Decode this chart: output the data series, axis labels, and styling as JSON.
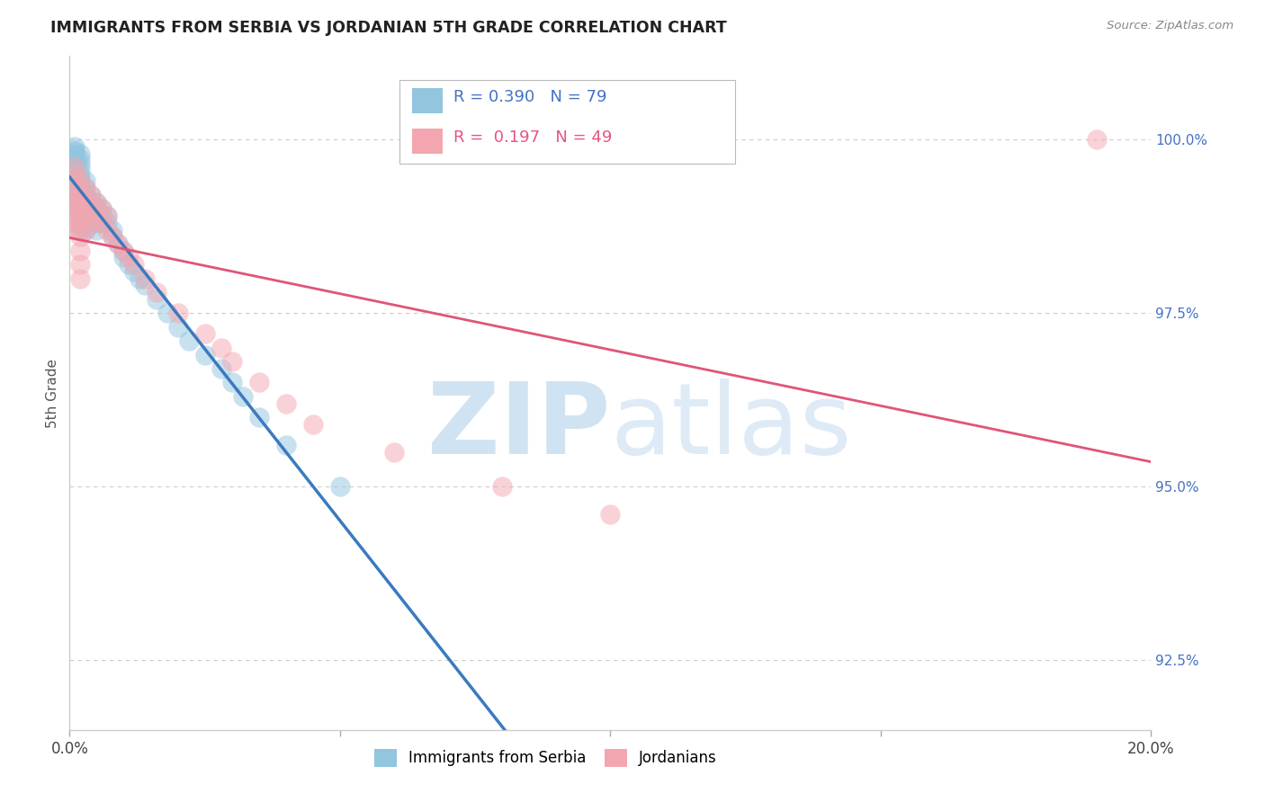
{
  "title": "IMMIGRANTS FROM SERBIA VS JORDANIAN 5TH GRADE CORRELATION CHART",
  "source": "Source: ZipAtlas.com",
  "ylabel": "5th Grade",
  "blue_R": "0.390",
  "blue_N": "79",
  "pink_R": "0.197",
  "pink_N": "49",
  "blue_color": "#92c5de",
  "pink_color": "#f4a6b0",
  "blue_line_color": "#3a7abf",
  "pink_line_color": "#e05577",
  "legend_label_blue": "Immigrants from Serbia",
  "legend_label_pink": "Jordanians",
  "xmin": 0.0,
  "xmax": 0.2,
  "ymin": 91.5,
  "ymax": 101.2,
  "yticks": [
    100.0,
    97.5,
    95.0,
    92.5
  ],
  "blue_scatter_x": [
    0.001,
    0.001,
    0.001,
    0.001,
    0.001,
    0.001,
    0.001,
    0.001,
    0.001,
    0.001,
    0.001,
    0.001,
    0.001,
    0.001,
    0.001,
    0.001,
    0.001,
    0.001,
    0.001,
    0.001,
    0.002,
    0.002,
    0.002,
    0.002,
    0.002,
    0.002,
    0.002,
    0.002,
    0.002,
    0.002,
    0.002,
    0.002,
    0.002,
    0.002,
    0.002,
    0.002,
    0.003,
    0.003,
    0.003,
    0.003,
    0.003,
    0.003,
    0.003,
    0.003,
    0.004,
    0.004,
    0.004,
    0.004,
    0.004,
    0.005,
    0.005,
    0.005,
    0.005,
    0.005,
    0.006,
    0.006,
    0.006,
    0.007,
    0.007,
    0.008,
    0.008,
    0.009,
    0.01,
    0.01,
    0.011,
    0.012,
    0.013,
    0.014,
    0.016,
    0.018,
    0.02,
    0.022,
    0.025,
    0.028,
    0.03,
    0.032,
    0.035,
    0.04,
    0.05
  ],
  "blue_scatter_y": [
    99.9,
    99.85,
    99.82,
    99.78,
    99.75,
    99.7,
    99.68,
    99.65,
    99.6,
    99.55,
    99.5,
    99.45,
    99.4,
    99.35,
    99.3,
    99.25,
    99.2,
    99.15,
    99.1,
    99.05,
    99.8,
    99.72,
    99.65,
    99.58,
    99.5,
    99.42,
    99.35,
    99.28,
    99.2,
    99.12,
    99.05,
    98.98,
    98.9,
    98.82,
    98.75,
    98.68,
    99.4,
    99.3,
    99.2,
    99.1,
    99.0,
    98.9,
    98.8,
    98.7,
    99.2,
    99.1,
    99.0,
    98.9,
    98.8,
    99.1,
    99.0,
    98.9,
    98.8,
    98.7,
    99.0,
    98.9,
    98.8,
    98.9,
    98.8,
    98.7,
    98.6,
    98.5,
    98.4,
    98.3,
    98.2,
    98.1,
    98.0,
    97.9,
    97.7,
    97.5,
    97.3,
    97.1,
    96.9,
    96.7,
    96.5,
    96.3,
    96.0,
    95.6,
    95.0
  ],
  "pink_scatter_x": [
    0.001,
    0.001,
    0.001,
    0.001,
    0.001,
    0.001,
    0.001,
    0.001,
    0.001,
    0.001,
    0.002,
    0.002,
    0.002,
    0.002,
    0.002,
    0.002,
    0.002,
    0.002,
    0.003,
    0.003,
    0.003,
    0.003,
    0.004,
    0.004,
    0.004,
    0.005,
    0.005,
    0.006,
    0.006,
    0.007,
    0.007,
    0.008,
    0.009,
    0.01,
    0.011,
    0.012,
    0.014,
    0.016,
    0.02,
    0.025,
    0.028,
    0.03,
    0.035,
    0.04,
    0.045,
    0.06,
    0.08,
    0.1,
    0.19
  ],
  "pink_scatter_y": [
    99.6,
    99.5,
    99.4,
    99.3,
    99.2,
    99.1,
    99.0,
    98.9,
    98.8,
    98.7,
    99.4,
    99.2,
    99.0,
    98.8,
    98.6,
    98.4,
    98.2,
    98.0,
    99.3,
    99.1,
    98.9,
    98.7,
    99.2,
    99.0,
    98.8,
    99.1,
    98.9,
    99.0,
    98.8,
    98.9,
    98.7,
    98.6,
    98.5,
    98.4,
    98.3,
    98.2,
    98.0,
    97.8,
    97.5,
    97.2,
    97.0,
    96.8,
    96.5,
    96.2,
    95.9,
    95.5,
    95.0,
    94.6,
    100.0
  ]
}
